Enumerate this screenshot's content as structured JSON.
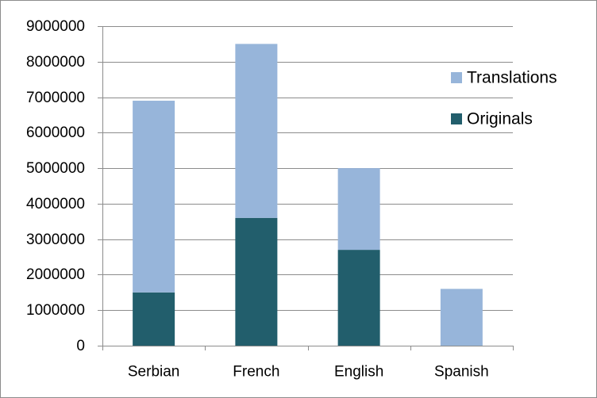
{
  "chart_data": {
    "type": "bar",
    "stacked": true,
    "title": "",
    "xlabel": "",
    "ylabel": "",
    "categories": [
      "Serbian",
      "French",
      "English",
      "Spanish"
    ],
    "series": [
      {
        "name": "Originals",
        "color": "#225e6c",
        "values": [
          1500000,
          3600000,
          2700000,
          0
        ]
      },
      {
        "name": "Translations",
        "color": "#97b5da",
        "values": [
          5400000,
          4900000,
          2300000,
          1600000
        ]
      }
    ],
    "ylim": [
      0,
      9000000
    ],
    "yticks": [
      "0",
      "1000000",
      "2000000",
      "3000000",
      "4000000",
      "5000000",
      "6000000",
      "7000000",
      "8000000",
      "9000000"
    ],
    "grid": true,
    "legend": {
      "position": "right",
      "entries": [
        "Translations",
        "Originals"
      ]
    }
  }
}
